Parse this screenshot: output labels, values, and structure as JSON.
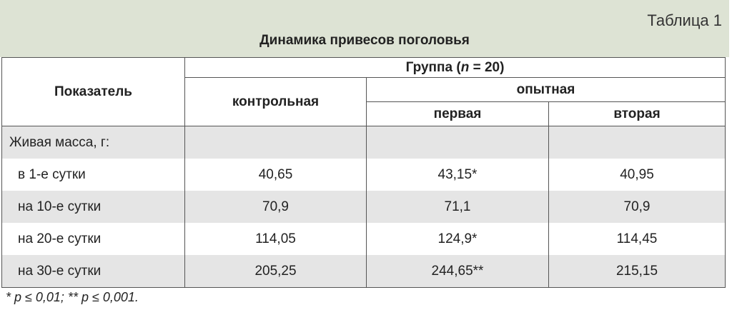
{
  "header": {
    "table_number": "Таблица 1",
    "title": "Динамика привесов поголовья"
  },
  "table": {
    "columns": {
      "indicator": "Показатель",
      "group_parts": [
        "Группа (",
        "n",
        " = 20)"
      ],
      "control": "контрольная",
      "experimental": "опытная",
      "first": "первая",
      "second": "вторая"
    },
    "section": "Живая масса, г:",
    "rows": [
      [
        "в 1-е сутки",
        "40,65",
        "43,15*",
        "40,95"
      ],
      [
        "на 10-е сутки",
        "70,9",
        "71,1",
        "70,9"
      ],
      [
        "на 20-е сутки",
        "114,05",
        "124,9*",
        "114,45"
      ],
      [
        "на 30-е сутки",
        "205,25",
        "244,65**",
        "215,15"
      ]
    ]
  },
  "footnote": "* p ≤ 0,01; ** p ≤ 0,001."
}
